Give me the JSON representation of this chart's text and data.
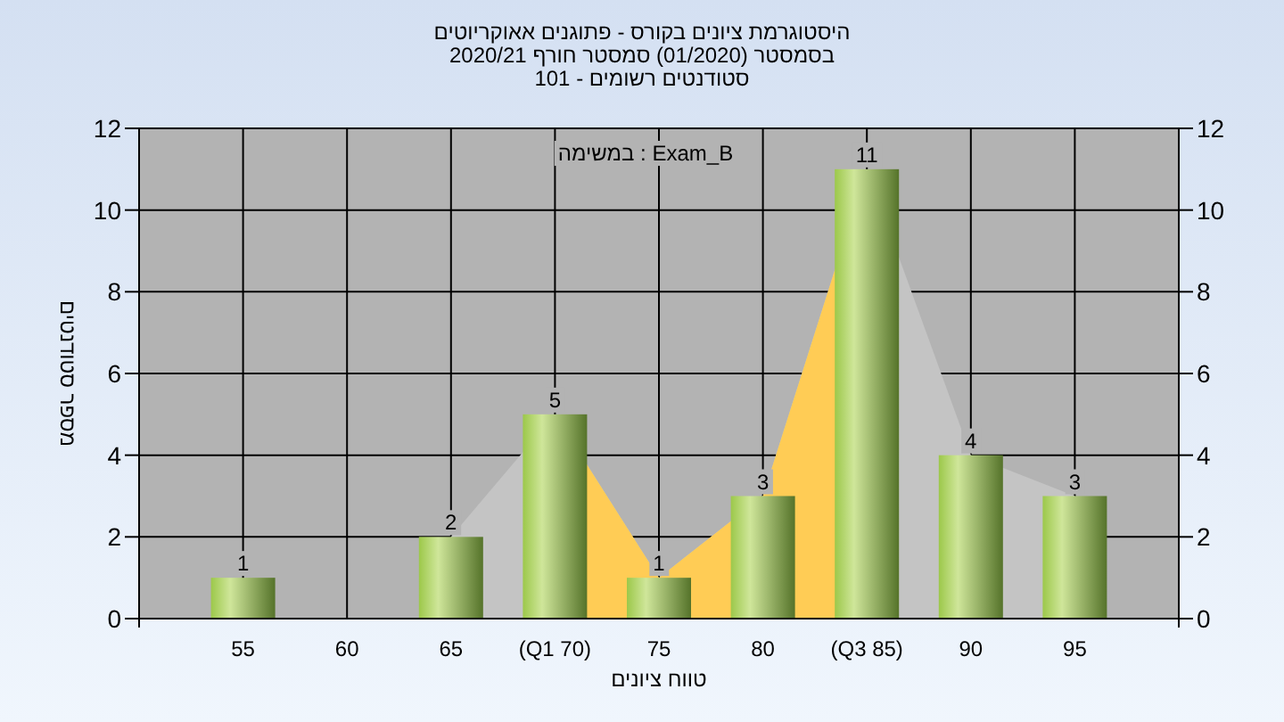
{
  "chart_data": {
    "type": "bar",
    "title": "היסטוגרמת ציונים בקורס - פתוגנים אאוקריוטים",
    "subtitle": "בסמסטר  (01/2020)  סמסטר חורף  2020/21\nסטודנטים רשומים - 101",
    "xlabel": "טווח ציונים",
    "ylabel": "מספר סטודנטים",
    "annotations": [
      "Exam_B : במשימה"
    ],
    "categories": [
      "55",
      "60",
      "65",
      "(Q1 70)",
      "75",
      "80",
      "(Q3 85)",
      "90",
      "95"
    ],
    "series": [
      {
        "type": "area",
        "color": "#c4c4c4",
        "values": [
          null,
          null,
          2,
          5,
          1,
          3,
          11,
          4,
          3
        ]
      },
      {
        "type": "area",
        "color": "#ffcc55",
        "values": [
          null,
          null,
          null,
          5,
          1,
          3,
          11,
          null,
          null
        ]
      },
      {
        "color": "#9cc84a",
        "values": [
          1,
          0,
          2,
          5,
          1,
          3,
          11,
          4,
          3
        ],
        "value_labels": [
          "1",
          null,
          "2",
          "5",
          "1",
          "3",
          "11",
          "4",
          "3"
        ]
      }
    ],
    "ylim": [
      0,
      12
    ],
    "yticks": [
      0,
      2,
      4,
      6,
      8,
      10,
      12
    ],
    "y2lim": [
      0,
      12
    ],
    "y2ticks": [
      0,
      2,
      4,
      6,
      8,
      10,
      12
    ],
    "grid": true
  }
}
